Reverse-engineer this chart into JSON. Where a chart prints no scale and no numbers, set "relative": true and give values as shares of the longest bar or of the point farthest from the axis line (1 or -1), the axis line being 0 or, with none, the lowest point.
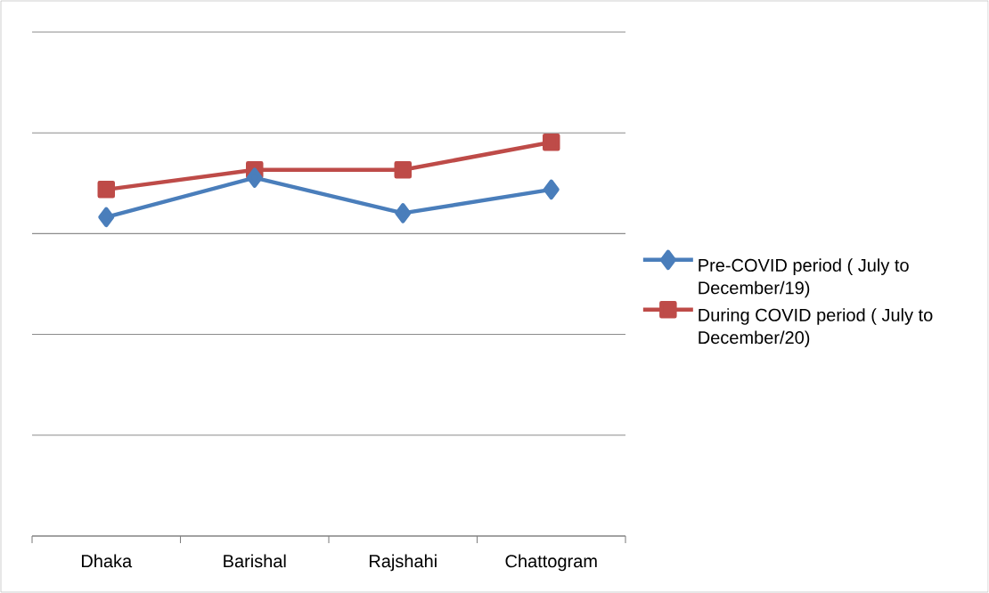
{
  "chart_data": {
    "type": "line",
    "relative": true,
    "grid": "y",
    "legend": "right",
    "categories": [
      "Dhaka",
      "Barishal",
      "Rajshahi",
      "Chattogram"
    ],
    "series": [
      {
        "name": "Pre-COVID period ( July to December/19)",
        "color": "#4a7ebb",
        "marker": "diamond",
        "values": [
          0.81,
          0.91,
          0.82,
          0.88
        ]
      },
      {
        "name": "During COVID period ( July to December/20)",
        "color": "#be4b48",
        "marker": "square",
        "values": [
          0.88,
          0.93,
          0.93,
          1
        ]
      }
    ]
  }
}
